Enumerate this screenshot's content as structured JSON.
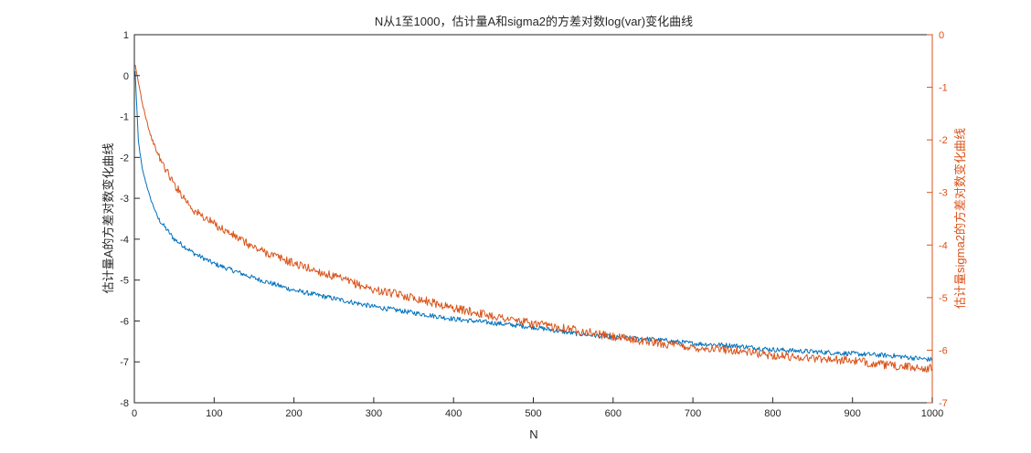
{
  "chart_data": {
    "type": "line",
    "title": "N从1至1000，估计量A和sigma2的方差对数log(var)变化曲线",
    "xlabel": "N",
    "ylabel_left": "估计量A的方差对数变化曲线",
    "ylabel_right": "估计量sigma2的方差对数变化曲线",
    "xlim": [
      0,
      1000
    ],
    "ylim_left": [
      -8,
      1
    ],
    "ylim_right": [
      -7,
      0
    ],
    "x_ticks": [
      "0",
      "100",
      "200",
      "300",
      "400",
      "500",
      "600",
      "700",
      "800",
      "900",
      "1000"
    ],
    "y_left_ticks": [
      "1",
      "0",
      "-1",
      "-2",
      "-3",
      "-4",
      "-5",
      "-6",
      "-7",
      "-8"
    ],
    "y_right_ticks": [
      "0",
      "-1",
      "-2",
      "-3",
      "-4",
      "-5",
      "-6",
      "-7"
    ],
    "grid": false,
    "colors": {
      "left_axis": "#262626",
      "right_axis": "#D95319",
      "series_a": "#0072BD",
      "series_sigma2": "#D95319"
    },
    "series": [
      {
        "axis": "left",
        "color": "#0072BD",
        "x": [
          1,
          5,
          10,
          20,
          30,
          50,
          75,
          100,
          150,
          200,
          250,
          300,
          350,
          400,
          450,
          500,
          550,
          600,
          650,
          700,
          750,
          800,
          850,
          900,
          950,
          1000
        ],
        "values": [
          0.1,
          -1.6,
          -2.3,
          -3.0,
          -3.5,
          -4.0,
          -4.35,
          -4.6,
          -4.95,
          -5.25,
          -5.45,
          -5.65,
          -5.8,
          -5.95,
          -6.05,
          -6.15,
          -6.3,
          -6.4,
          -6.45,
          -6.55,
          -6.6,
          -6.7,
          -6.75,
          -6.8,
          -6.85,
          -6.95
        ],
        "noise": 0.06
      },
      {
        "axis": "right",
        "color": "#D95319",
        "x": [
          1,
          5,
          10,
          20,
          30,
          50,
          75,
          100,
          150,
          200,
          250,
          300,
          350,
          400,
          450,
          500,
          550,
          600,
          650,
          700,
          750,
          800,
          850,
          900,
          950,
          1000
        ],
        "values": [
          -0.6,
          -0.9,
          -1.3,
          -1.9,
          -2.3,
          -2.85,
          -3.35,
          -3.6,
          -4.05,
          -4.35,
          -4.6,
          -4.85,
          -5.0,
          -5.2,
          -5.35,
          -5.5,
          -5.6,
          -5.75,
          -5.85,
          -5.95,
          -6.0,
          -6.1,
          -6.15,
          -6.2,
          -6.3,
          -6.35
        ],
        "noise": 0.08
      }
    ]
  }
}
